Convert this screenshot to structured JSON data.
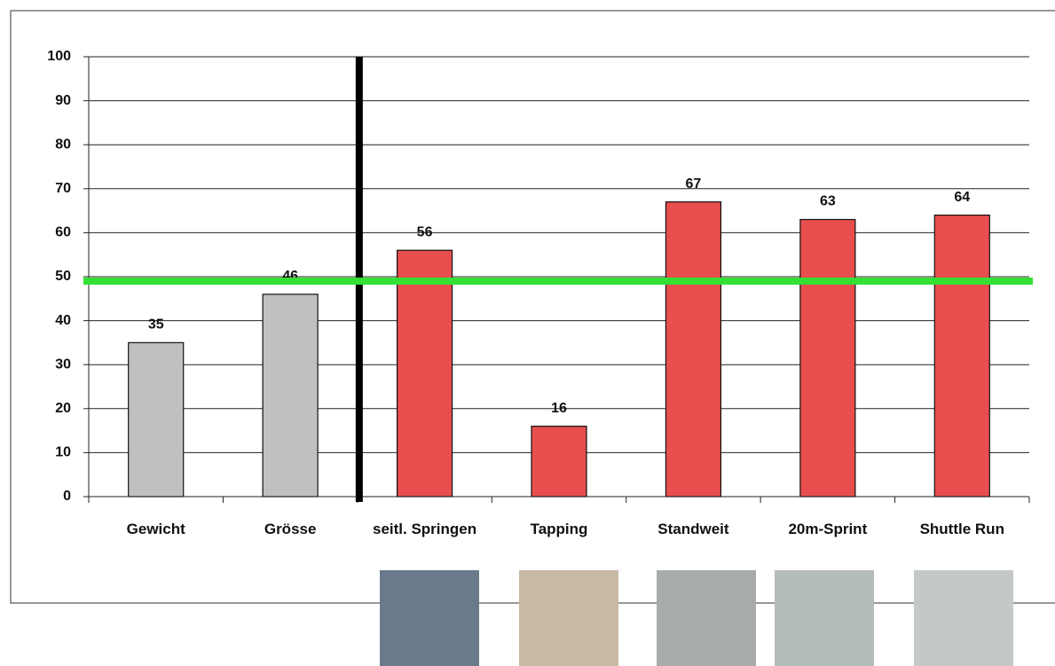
{
  "chart_data": {
    "type": "bar",
    "categories": [
      "Gewicht",
      "Grösse",
      "seitl. Springen",
      "Tapping",
      "Standweit",
      "20m-Sprint",
      "Shuttle Run"
    ],
    "values": [
      35,
      46,
      56,
      16,
      67,
      63,
      64
    ],
    "colors": [
      "#c0c0c0",
      "#c0c0c0",
      "#e84e4e",
      "#e84e4e",
      "#e84e4e",
      "#e84e4e",
      "#e84e4e"
    ],
    "ylim": [
      0,
      100
    ],
    "yticks": [
      0,
      10,
      20,
      30,
      40,
      50,
      60,
      70,
      80,
      90,
      100
    ],
    "grid": true,
    "reference_line": {
      "value": 49,
      "color": "#33e033"
    }
  }
}
